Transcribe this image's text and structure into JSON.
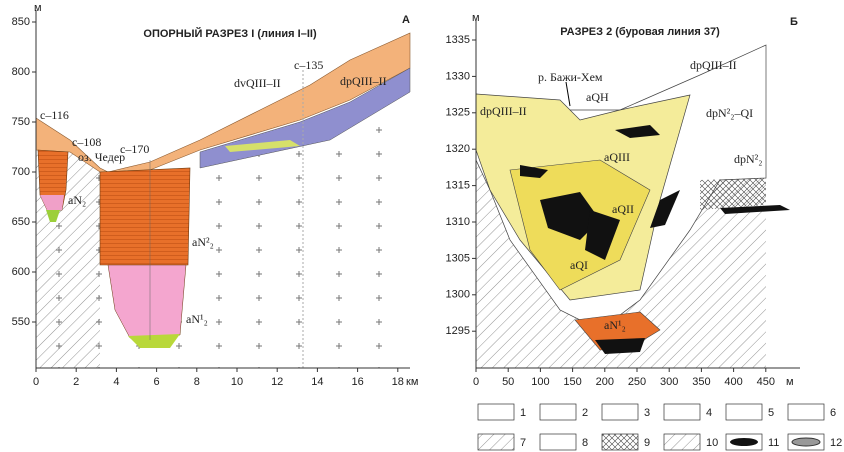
{
  "left_section": {
    "title": "ОПОРНЫЙ РАЗРЕЗ I (линия I–II)",
    "corner_label": "А",
    "y_unit": "м",
    "yticks": [
      550,
      600,
      650,
      700,
      750,
      800,
      850
    ],
    "xticks": [
      0,
      2,
      4,
      6,
      8,
      10,
      12,
      14,
      16,
      18
    ],
    "x_unit": "км",
    "labels": [
      "с–116",
      "оз. Чедер",
      "с–108",
      "с–170",
      "с–135",
      "dvQIII–II",
      "dpQIII–II",
      "aN₂",
      "aN²₂",
      "aN¹₂"
    ]
  },
  "right_section": {
    "title": "РАЗРЕЗ 2 (буровая линия 37)",
    "corner_label": "Б",
    "y_unit": "м",
    "yticks": [
      1295,
      1300,
      1305,
      1310,
      1315,
      1320,
      1325,
      1330,
      1335
    ],
    "xticks": [
      0,
      50,
      100,
      150,
      200,
      250,
      300,
      350,
      400,
      450
    ],
    "x_unit": "м",
    "labels": [
      "р. Бажи-Хем",
      "aQH",
      "dpQIII–II",
      "dpQIII–II",
      "dpN²₂–QI",
      "aQIII",
      "aQII",
      "aQI",
      "dpN²₂",
      "aN¹₂"
    ]
  },
  "legend": {
    "items": [
      "1",
      "2",
      "3",
      "4",
      "5",
      "6",
      "7",
      "8",
      "9",
      "10",
      "11",
      "12"
    ]
  }
}
